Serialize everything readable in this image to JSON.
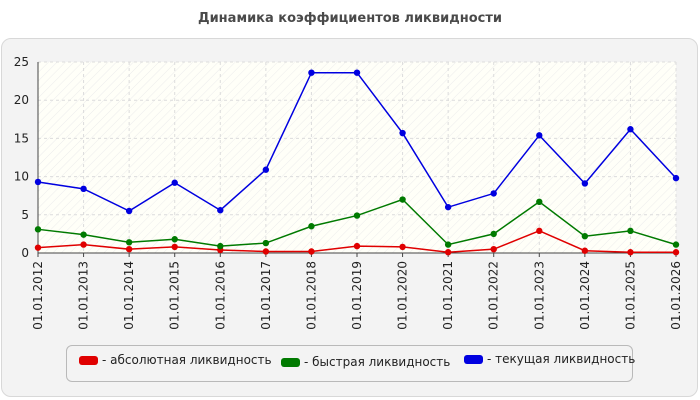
{
  "title": "Динамика коэффициентов ликвидности",
  "chart_data": {
    "type": "line",
    "title": "Динамика коэффициентов ликвидности",
    "categories": [
      "01.01.2012",
      "01.01.2013",
      "01.01.2014",
      "01.01.2015",
      "01.01.2016",
      "01.01.2017",
      "01.01.2018",
      "01.01.2019",
      "01.01.2020",
      "01.01.2021",
      "01.01.2022",
      "01.01.2023",
      "01.01.2024",
      "01.01.2025",
      "01.01.2026"
    ],
    "ylim": [
      0,
      25
    ],
    "yticks": [
      0,
      5,
      10,
      15,
      20,
      25
    ],
    "grid": true,
    "legend_position": "bottom",
    "series": [
      {
        "name": "- абсолютная ликвидность",
        "color": "#e00000",
        "values": [
          0.7,
          1.1,
          0.5,
          0.8,
          0.4,
          0.2,
          0.2,
          0.9,
          0.8,
          0.1,
          0.5,
          2.9,
          0.3,
          0.1,
          0.1
        ]
      },
      {
        "name": "- быстрая ликвидность",
        "color": "#007a00",
        "values": [
          3.1,
          2.4,
          1.4,
          1.8,
          0.9,
          1.3,
          3.5,
          4.9,
          7.0,
          1.1,
          2.5,
          6.7,
          2.2,
          2.9,
          1.1
        ]
      },
      {
        "name": "- текущая ликвидность",
        "color": "#0000e0",
        "values": [
          9.3,
          8.4,
          5.5,
          9.2,
          5.6,
          10.9,
          23.6,
          23.6,
          15.7,
          6.0,
          7.8,
          15.4,
          9.1,
          16.2,
          9.8
        ]
      }
    ]
  }
}
